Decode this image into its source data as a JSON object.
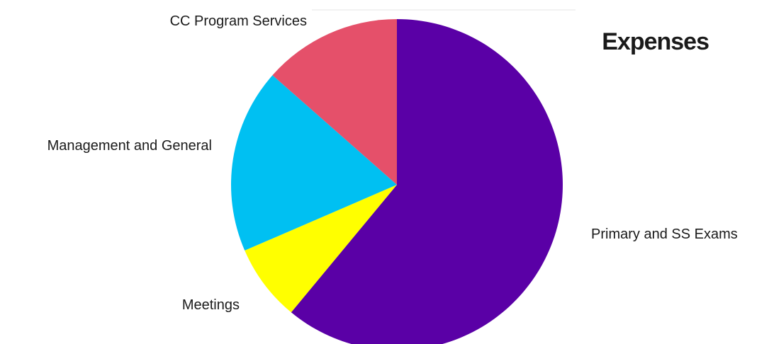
{
  "chart_data": {
    "type": "pie",
    "title": "Expenses",
    "categories": [
      "Primary and SS Exams",
      "Meetings",
      "Management and General",
      "CC Program Services"
    ],
    "values": [
      61,
      7.5,
      18,
      13.5
    ],
    "unit": "%",
    "colors": {
      "Primary and SS Exams": "#5a00a6",
      "Meetings": "#ffff00",
      "Management and General": "#00c0f2",
      "CC Program Services": "#e5506a"
    },
    "start_angle": "12 o'clock",
    "direction": "clockwise",
    "legend": "none"
  }
}
